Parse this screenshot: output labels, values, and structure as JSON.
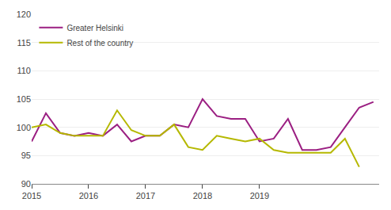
{
  "chart_data": {
    "type": "line",
    "x": [
      2015.0,
      2015.25,
      2015.5,
      2015.75,
      2016.0,
      2016.25,
      2016.5,
      2016.75,
      2017.0,
      2017.25,
      2017.5,
      2017.75,
      2018.0,
      2018.25,
      2018.5,
      2018.75,
      2019.0,
      2019.25,
      2019.5,
      2019.75,
      2020.0,
      2020.25,
      2020.5,
      2020.75,
      2021.0
    ],
    "series": [
      {
        "name": "Greater Helsinki",
        "color": "#9b1f82",
        "values": [
          97.5,
          102.5,
          99.0,
          98.5,
          99.0,
          98.5,
          100.5,
          97.5,
          98.5,
          98.5,
          100.5,
          100.0,
          105.0,
          102.0,
          101.5,
          101.5,
          97.5,
          98.0,
          101.5,
          96.0,
          96.0,
          96.5,
          100.0,
          103.5,
          104.5
        ]
      },
      {
        "name": "Rest of the country",
        "color": "#b5b800",
        "values": [
          100.0,
          100.5,
          99.0,
          98.5,
          98.5,
          98.5,
          103.0,
          99.5,
          98.5,
          98.5,
          100.5,
          96.5,
          96.0,
          98.5,
          98.0,
          97.5,
          98.0,
          96.0,
          95.5,
          95.5,
          95.5,
          95.5,
          98.0,
          93.0,
          null
        ]
      }
    ],
    "xlim": [
      2015.0,
      2021.1
    ],
    "xticks": [
      2015,
      2016,
      2017,
      2018,
      2019
    ],
    "ylim": [
      90,
      120
    ],
    "yticks": [
      90,
      95,
      100,
      105,
      110,
      115,
      120
    ],
    "grid": "y",
    "legend": "upper left"
  }
}
